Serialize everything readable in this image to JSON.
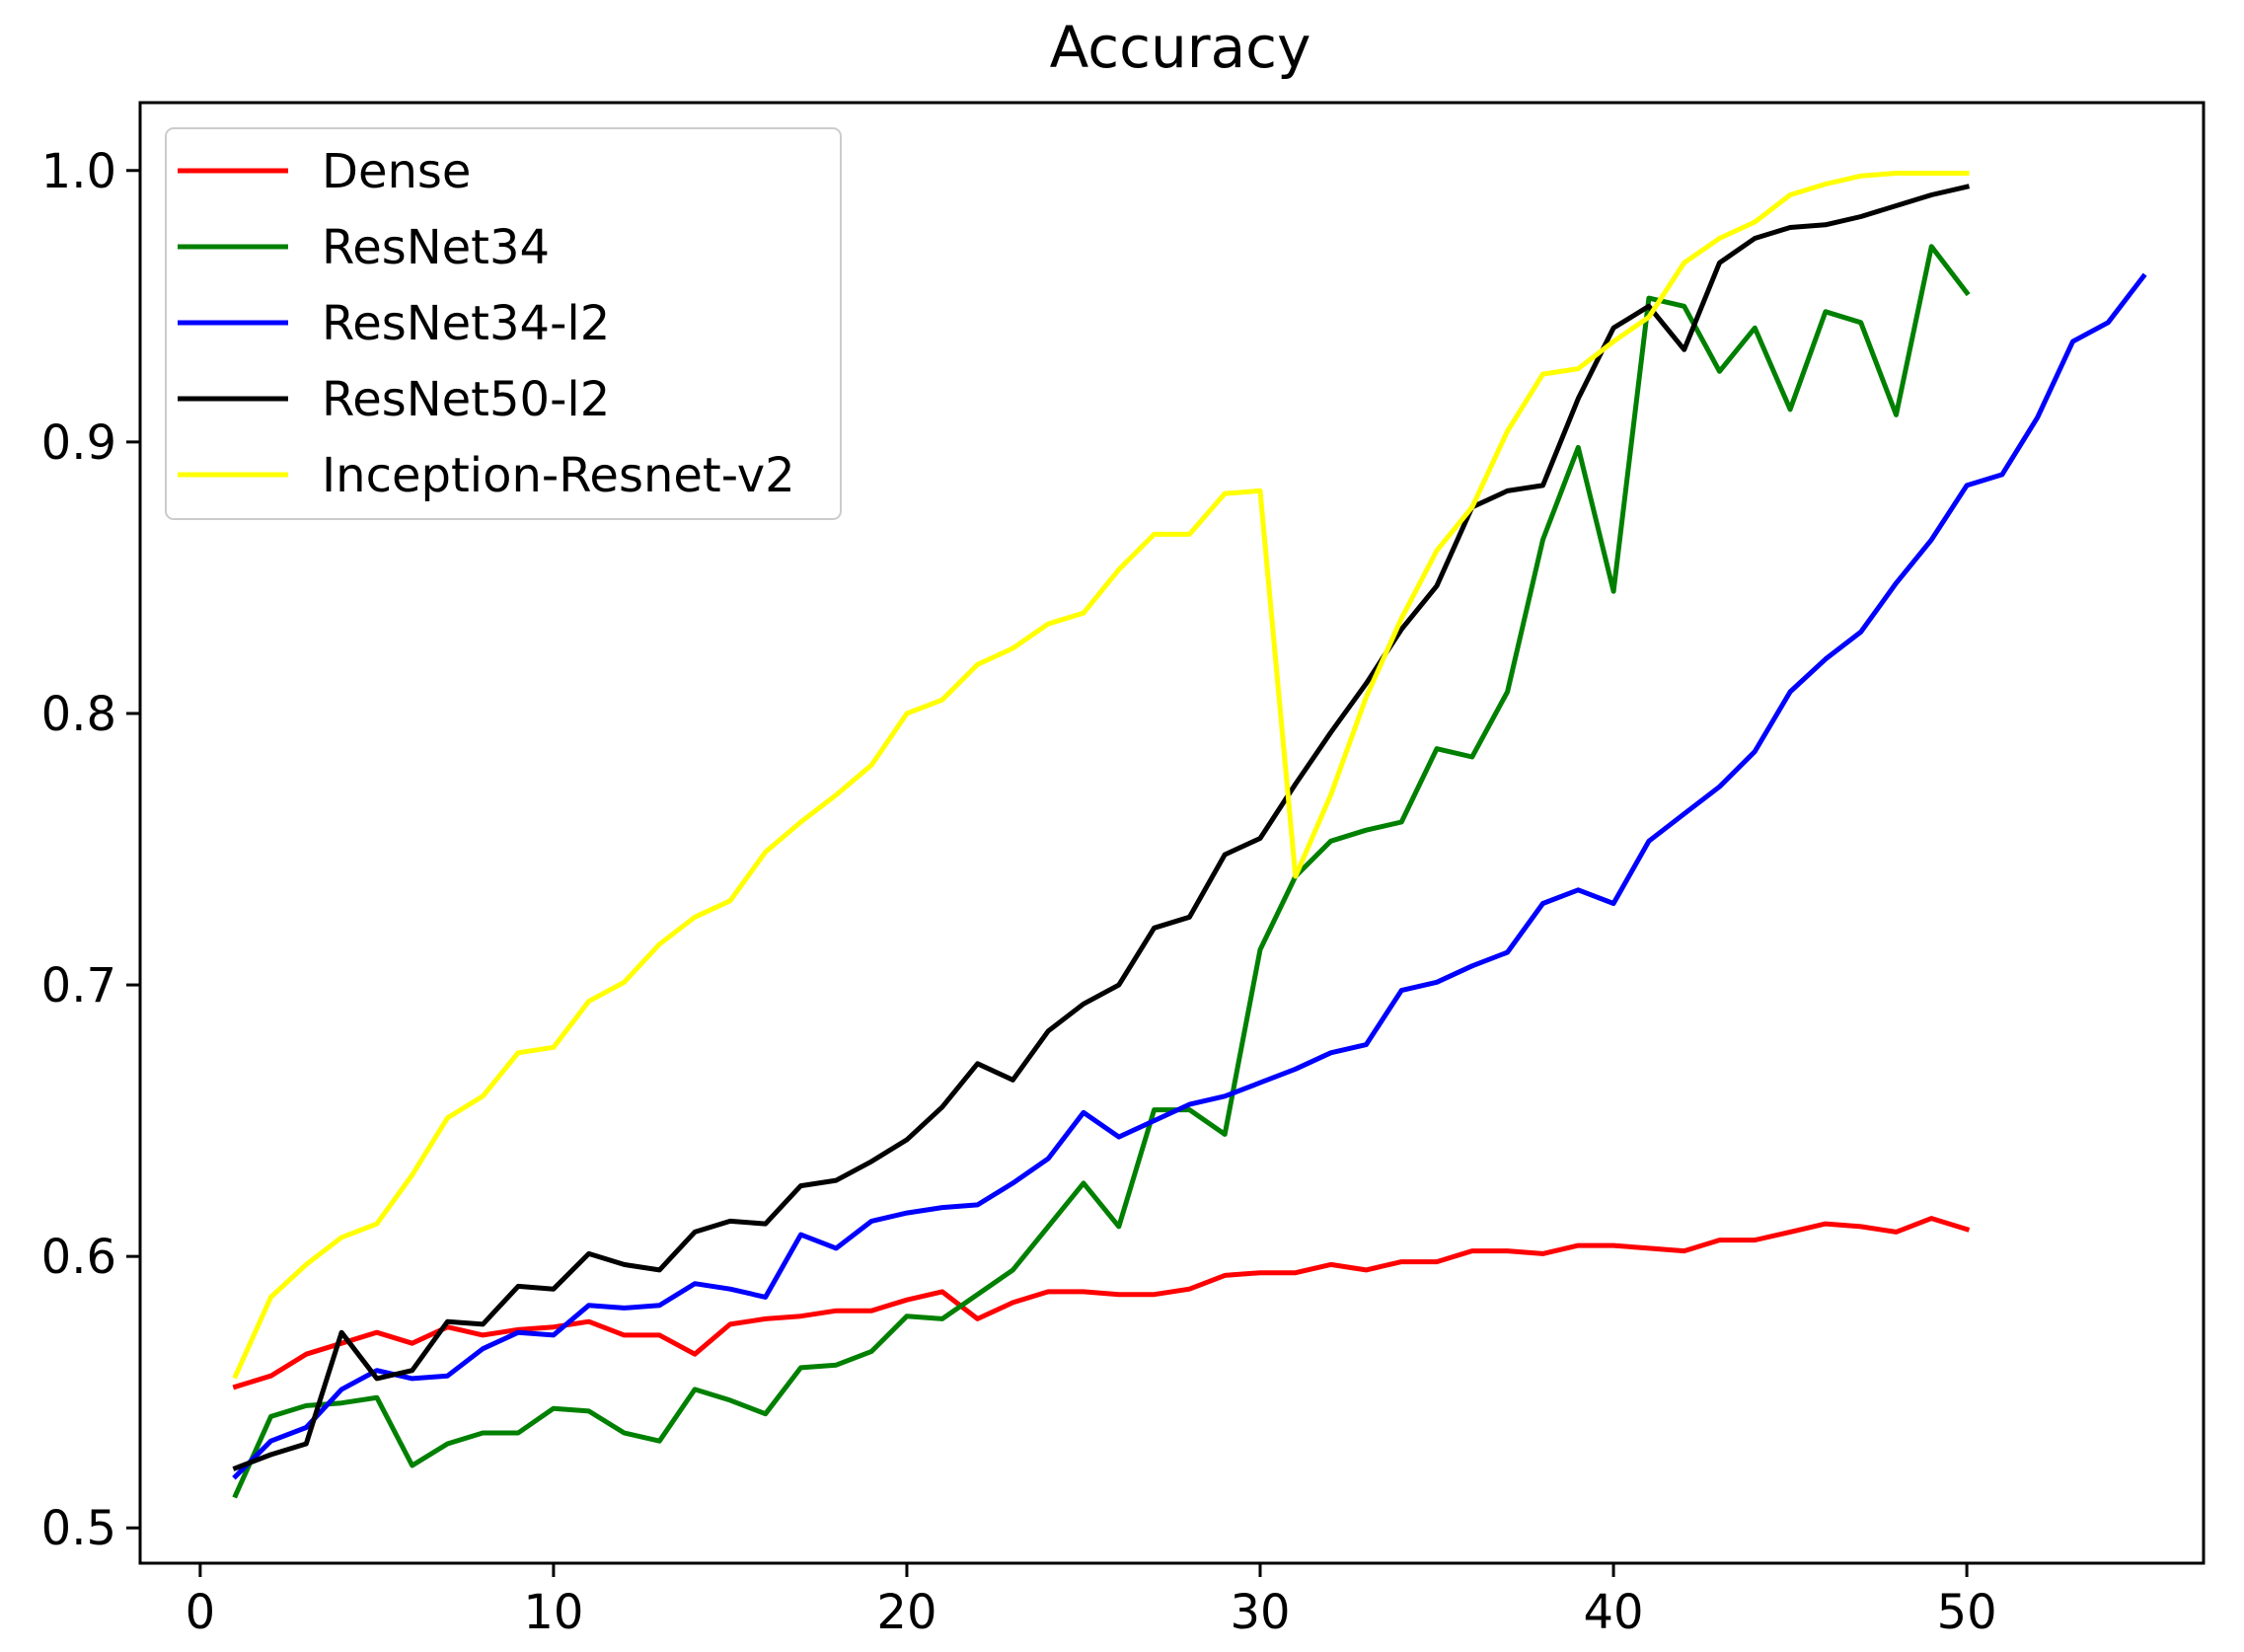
{
  "chart_data": {
    "type": "line",
    "title": "Accuracy",
    "xlabel": "",
    "ylabel": "",
    "xlim": [
      -1.7,
      56.7
    ],
    "ylim": [
      0.487,
      1.025
    ],
    "xticks": [
      0,
      10,
      20,
      30,
      40,
      50
    ],
    "yticks": [
      0.5,
      0.6,
      0.7,
      0.8,
      0.9,
      1.0
    ],
    "xtick_labels": [
      "0",
      "10",
      "20",
      "30",
      "40",
      "50"
    ],
    "ytick_labels": [
      "0.5",
      "0.6",
      "0.7",
      "0.8",
      "0.9",
      "1.0"
    ],
    "grid": false,
    "legend_position": "upper-left",
    "series": [
      {
        "name": "Dense",
        "color": "#ff0000",
        "x": [
          1,
          2,
          3,
          4,
          5,
          6,
          7,
          8,
          9,
          10,
          11,
          12,
          13,
          14,
          15,
          16,
          17,
          18,
          19,
          20,
          21,
          22,
          23,
          24,
          25,
          26,
          27,
          28,
          29,
          30,
          31,
          32,
          33,
          34,
          35,
          36,
          37,
          38,
          39,
          40,
          41,
          42,
          43,
          44,
          45,
          46,
          47,
          48,
          49,
          50
        ],
        "y": [
          0.552,
          0.556,
          0.564,
          0.568,
          0.572,
          0.568,
          0.574,
          0.571,
          0.573,
          0.574,
          0.576,
          0.571,
          0.571,
          0.564,
          0.575,
          0.577,
          0.578,
          0.58,
          0.58,
          0.584,
          0.587,
          0.577,
          0.583,
          0.587,
          0.587,
          0.586,
          0.586,
          0.588,
          0.593,
          0.594,
          0.594,
          0.597,
          0.595,
          0.598,
          0.598,
          0.602,
          0.602,
          0.601,
          0.604,
          0.604,
          0.603,
          0.602,
          0.606,
          0.606,
          0.609,
          0.612,
          0.611,
          0.609,
          0.614,
          0.61
        ]
      },
      {
        "name": "ResNet34",
        "color": "#008000",
        "x": [
          1,
          2,
          3,
          4,
          5,
          6,
          7,
          8,
          9,
          10,
          11,
          12,
          13,
          14,
          15,
          16,
          17,
          18,
          19,
          20,
          21,
          22,
          23,
          24,
          25,
          26,
          27,
          28,
          29,
          30,
          31,
          32,
          33,
          34,
          35,
          36,
          37,
          38,
          39,
          40,
          41,
          42,
          43,
          44,
          45,
          46,
          47,
          48,
          49,
          50
        ],
        "y": [
          0.512,
          0.541,
          0.545,
          0.546,
          0.548,
          0.523,
          0.531,
          0.535,
          0.535,
          0.544,
          0.543,
          0.535,
          0.532,
          0.551,
          0.547,
          0.542,
          0.559,
          0.56,
          0.565,
          0.578,
          0.577,
          0.586,
          0.595,
          0.611,
          0.627,
          0.611,
          0.654,
          0.654,
          0.645,
          0.713,
          0.74,
          0.753,
          0.757,
          0.76,
          0.787,
          0.784,
          0.808,
          0.864,
          0.898,
          0.845,
          0.953,
          0.95,
          0.926,
          0.942,
          0.912,
          0.948,
          0.944,
          0.91,
          0.972,
          0.955
        ]
      },
      {
        "name": "ResNet34-l2",
        "color": "#0000ff",
        "x": [
          1,
          2,
          3,
          4,
          5,
          6,
          7,
          8,
          9,
          10,
          11,
          12,
          13,
          14,
          15,
          16,
          17,
          18,
          19,
          20,
          21,
          22,
          23,
          24,
          25,
          26,
          27,
          28,
          29,
          30,
          31,
          32,
          33,
          34,
          35,
          36,
          37,
          38,
          39,
          40,
          41,
          42,
          43,
          44,
          45,
          46,
          47,
          48,
          49,
          50,
          51,
          52,
          53,
          54,
          55
        ],
        "y": [
          0.519,
          0.532,
          0.537,
          0.551,
          0.558,
          0.555,
          0.556,
          0.566,
          0.572,
          0.571,
          0.582,
          0.581,
          0.582,
          0.59,
          0.588,
          0.585,
          0.608,
          0.603,
          0.613,
          0.616,
          0.618,
          0.619,
          0.627,
          0.636,
          0.653,
          0.644,
          0.65,
          0.656,
          0.659,
          0.664,
          0.669,
          0.675,
          0.678,
          0.698,
          0.701,
          0.707,
          0.712,
          0.73,
          0.735,
          0.73,
          0.753,
          0.763,
          0.773,
          0.786,
          0.808,
          0.82,
          0.83,
          0.848,
          0.864,
          0.884,
          0.888,
          0.909,
          0.937,
          0.944,
          0.961
        ]
      },
      {
        "name": "ResNet50-l2",
        "color": "#000000",
        "x": [
          1,
          2,
          3,
          4,
          5,
          6,
          7,
          8,
          9,
          10,
          11,
          12,
          13,
          14,
          15,
          16,
          17,
          18,
          19,
          20,
          21,
          22,
          23,
          24,
          25,
          26,
          27,
          28,
          29,
          30,
          31,
          32,
          33,
          34,
          35,
          36,
          37,
          38,
          39,
          40,
          41,
          42,
          43,
          44,
          45,
          46,
          47,
          48,
          49,
          50
        ],
        "y": [
          0.522,
          0.527,
          0.531,
          0.572,
          0.555,
          0.558,
          0.576,
          0.575,
          0.589,
          0.588,
          0.601,
          0.597,
          0.595,
          0.609,
          0.613,
          0.612,
          0.626,
          0.628,
          0.635,
          0.643,
          0.655,
          0.671,
          0.665,
          0.683,
          0.693,
          0.7,
          0.721,
          0.725,
          0.748,
          0.754,
          0.774,
          0.793,
          0.811,
          0.831,
          0.847,
          0.876,
          0.882,
          0.884,
          0.916,
          0.942,
          0.95,
          0.934,
          0.966,
          0.975,
          0.979,
          0.98,
          0.983,
          0.987,
          0.991,
          0.994
        ]
      },
      {
        "name": "Inception-Resnet-v2",
        "color": "#ffff00",
        "x": [
          1,
          2,
          3,
          4,
          5,
          6,
          7,
          8,
          9,
          10,
          11,
          12,
          13,
          14,
          15,
          16,
          17,
          18,
          19,
          20,
          21,
          22,
          23,
          24,
          25,
          26,
          27,
          28,
          29,
          30,
          31,
          32,
          33,
          34,
          35,
          36,
          37,
          38,
          39,
          40,
          41,
          42,
          43,
          44,
          45,
          46,
          47,
          48,
          49,
          50
        ],
        "y": [
          0.556,
          0.585,
          0.597,
          0.607,
          0.612,
          0.63,
          0.651,
          0.659,
          0.675,
          0.677,
          0.694,
          0.701,
          0.715,
          0.725,
          0.731,
          0.749,
          0.76,
          0.77,
          0.781,
          0.8,
          0.805,
          0.818,
          0.824,
          0.833,
          0.837,
          0.853,
          0.866,
          0.866,
          0.881,
          0.882,
          0.74,
          0.77,
          0.806,
          0.835,
          0.86,
          0.876,
          0.904,
          0.925,
          0.927,
          0.937,
          0.946,
          0.966,
          0.975,
          0.981,
          0.991,
          0.995,
          0.998,
          0.999,
          0.999,
          0.999
        ]
      }
    ]
  }
}
